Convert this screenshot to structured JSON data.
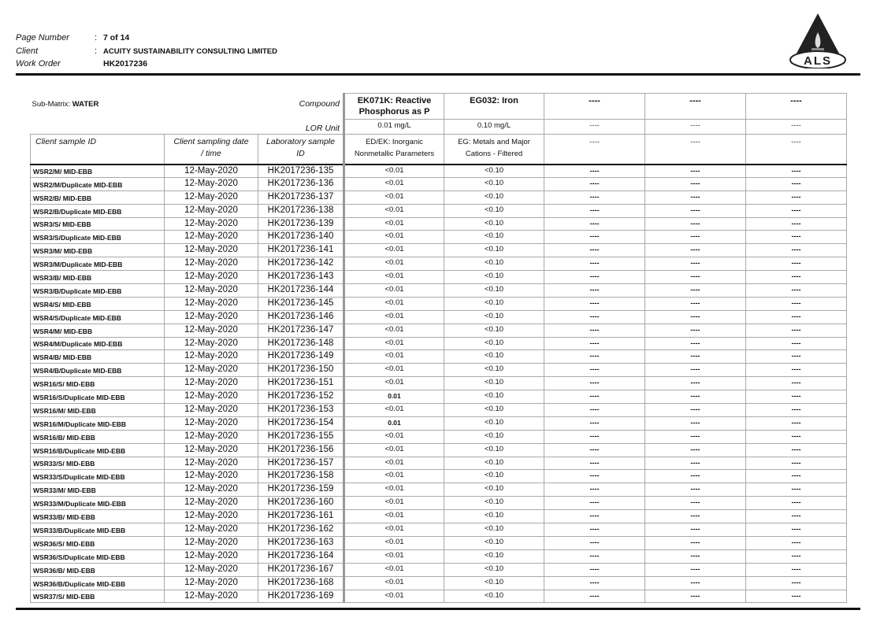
{
  "header": {
    "page_label": "Page Number",
    "page_value": "7 of 14",
    "client_label": "Client",
    "client_value": "ACUITY SUSTAINABILITY CONSULTING LIMITED",
    "work_order_label": "Work Order",
    "work_order_value": "HK2017236"
  },
  "logo": {
    "text": "ALS"
  },
  "table": {
    "sub_matrix_label": "Sub-Matrix:",
    "sub_matrix_value": "WATER",
    "compound_label": "Compound",
    "lor_label": "LOR Unit",
    "col_headers": [
      "Client sample ID",
      "Client sampling date",
      "/ time",
      "Laboratory sample",
      "ID"
    ],
    "compounds": [
      "EK071K: Reactive Phosphorus as P",
      "EG032: Iron",
      "----",
      "----",
      "----"
    ],
    "lor": [
      "0.01 mg/L",
      "0.10 mg/L",
      "----",
      "----",
      "----"
    ],
    "groups": [
      "ED/EK: Inorganic",
      "Nonmetallic Parameters",
      "EG: Metals and Major",
      "Cations - Filtered",
      "----",
      "----",
      "----"
    ],
    "rows": [
      [
        "WSR2/M/ MID-EBB",
        "12-May-2020",
        "HK2017236-135",
        "<0.01",
        "<0.10"
      ],
      [
        "WSR2/M/Duplicate MID-EBB",
        "12-May-2020",
        "HK2017236-136",
        "<0.01",
        "<0.10"
      ],
      [
        "WSR2/B/ MID-EBB",
        "12-May-2020",
        "HK2017236-137",
        "<0.01",
        "<0.10"
      ],
      [
        "WSR2/B/Duplicate MID-EBB",
        "12-May-2020",
        "HK2017236-138",
        "<0.01",
        "<0.10"
      ],
      [
        "WSR3/S/ MID-EBB",
        "12-May-2020",
        "HK2017236-139",
        "<0.01",
        "<0.10"
      ],
      [
        "WSR3/S/Duplicate MID-EBB",
        "12-May-2020",
        "HK2017236-140",
        "<0.01",
        "<0.10"
      ],
      [
        "WSR3/M/ MID-EBB",
        "12-May-2020",
        "HK2017236-141",
        "<0.01",
        "<0.10"
      ],
      [
        "WSR3/M/Duplicate MID-EBB",
        "12-May-2020",
        "HK2017236-142",
        "<0.01",
        "<0.10"
      ],
      [
        "WSR3/B/ MID-EBB",
        "12-May-2020",
        "HK2017236-143",
        "<0.01",
        "<0.10"
      ],
      [
        "WSR3/B/Duplicate MID-EBB",
        "12-May-2020",
        "HK2017236-144",
        "<0.01",
        "<0.10"
      ],
      [
        "WSR4/S/ MID-EBB",
        "12-May-2020",
        "HK2017236-145",
        "<0.01",
        "<0.10"
      ],
      [
        "WSR4/S/Duplicate MID-EBB",
        "12-May-2020",
        "HK2017236-146",
        "<0.01",
        "<0.10"
      ],
      [
        "WSR4/M/ MID-EBB",
        "12-May-2020",
        "HK2017236-147",
        "<0.01",
        "<0.10"
      ],
      [
        "WSR4/M/Duplicate MID-EBB",
        "12-May-2020",
        "HK2017236-148",
        "<0.01",
        "<0.10"
      ],
      [
        "WSR4/B/ MID-EBB",
        "12-May-2020",
        "HK2017236-149",
        "<0.01",
        "<0.10"
      ],
      [
        "WSR4/B/Duplicate MID-EBB",
        "12-May-2020",
        "HK2017236-150",
        "<0.01",
        "<0.10"
      ],
      [
        "WSR16/S/ MID-EBB",
        "12-May-2020",
        "HK2017236-151",
        "<0.01",
        "<0.10"
      ],
      [
        "WSR16/S/Duplicate MID-EBB",
        "12-May-2020",
        "HK2017236-152",
        "0.01",
        "<0.10"
      ],
      [
        "WSR16/M/ MID-EBB",
        "12-May-2020",
        "HK2017236-153",
        "<0.01",
        "<0.10"
      ],
      [
        "WSR16/M/Duplicate MID-EBB",
        "12-May-2020",
        "HK2017236-154",
        "0.01",
        "<0.10"
      ],
      [
        "WSR16/B/ MID-EBB",
        "12-May-2020",
        "HK2017236-155",
        "<0.01",
        "<0.10"
      ],
      [
        "WSR16/B/Duplicate MID-EBB",
        "12-May-2020",
        "HK2017236-156",
        "<0.01",
        "<0.10"
      ],
      [
        "WSR33/S/ MID-EBB",
        "12-May-2020",
        "HK2017236-157",
        "<0.01",
        "<0.10"
      ],
      [
        "WSR33/S/Duplicate MID-EBB",
        "12-May-2020",
        "HK2017236-158",
        "<0.01",
        "<0.10"
      ],
      [
        "WSR33/M/ MID-EBB",
        "12-May-2020",
        "HK2017236-159",
        "<0.01",
        "<0.10"
      ],
      [
        "WSR33/M/Duplicate MID-EBB",
        "12-May-2020",
        "HK2017236-160",
        "<0.01",
        "<0.10"
      ],
      [
        "WSR33/B/ MID-EBB",
        "12-May-2020",
        "HK2017236-161",
        "<0.01",
        "<0.10"
      ],
      [
        "WSR33/B/Duplicate MID-EBB",
        "12-May-2020",
        "HK2017236-162",
        "<0.01",
        "<0.10"
      ],
      [
        "WSR36/S/ MID-EBB",
        "12-May-2020",
        "HK2017236-163",
        "<0.01",
        "<0.10"
      ],
      [
        "WSR36/S/Duplicate MID-EBB",
        "12-May-2020",
        "HK2017236-164",
        "<0.01",
        "<0.10"
      ],
      [
        "WSR36/B/ MID-EBB",
        "12-May-2020",
        "HK2017236-167",
        "<0.01",
        "<0.10"
      ],
      [
        "WSR36/B/Duplicate MID-EBB",
        "12-May-2020",
        "HK2017236-168",
        "<0.01",
        "<0.10"
      ],
      [
        "WSR37/S/ MID-EBB",
        "12-May-2020",
        "HK2017236-169",
        "<0.01",
        "<0.10"
      ]
    ],
    "empty_cell": "----"
  }
}
